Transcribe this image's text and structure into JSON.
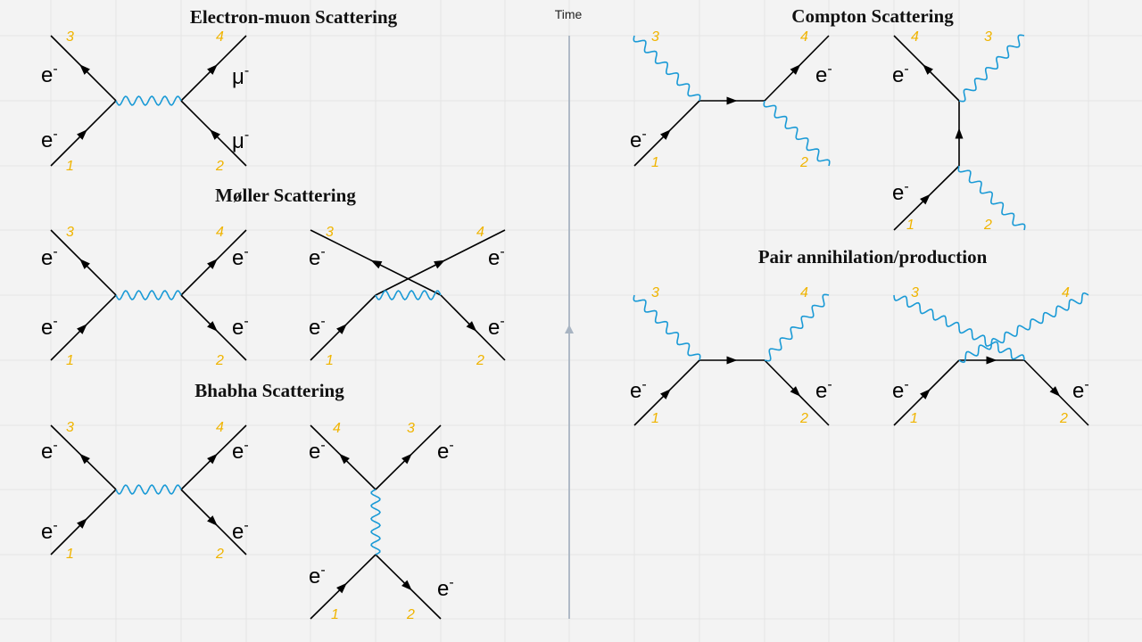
{
  "titles": {
    "electron_muon": "Electron-muon Scattering",
    "moller": "Møller Scattering",
    "bhabha": "Bhabha Scattering",
    "compton": "Compton Scattering",
    "pair": "Pair annihilation/production"
  },
  "time_axis_label": "Time",
  "particles": {
    "electron": "e",
    "muon": "μ",
    "charge": "-"
  },
  "leg_numbers": [
    "1",
    "2",
    "3",
    "4"
  ],
  "colors": {
    "background": "#f3f3f3",
    "grid": "#e4e4e4",
    "fermion": "#000000",
    "photon": "#1a9ad6",
    "leg_number": "#f0b400",
    "time_axis": "#a8b4c2"
  }
}
